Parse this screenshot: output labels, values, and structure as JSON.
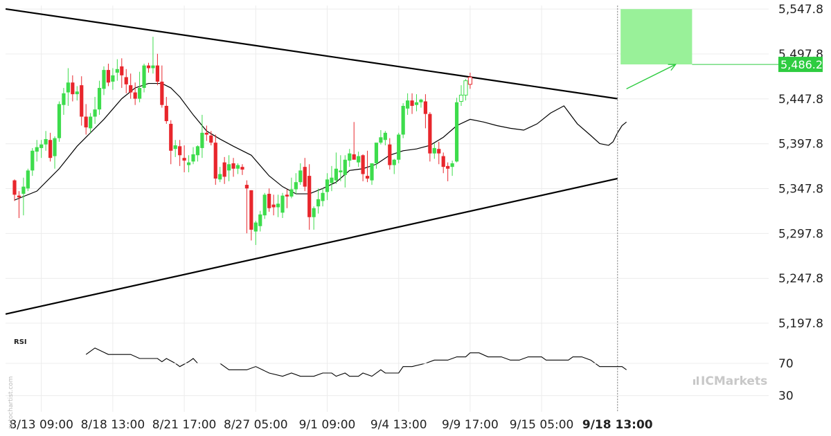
{
  "chart_data": {
    "type": "candlestick",
    "y_ticks": [
      "5,547.8",
      "5,497.8",
      "5,447.8",
      "5,397.8",
      "5,347.8",
      "5,297.8",
      "5,247.8",
      "5,197.8"
    ],
    "y_tick_values": [
      5547.8,
      5497.8,
      5447.8,
      5397.8,
      5347.8,
      5297.8,
      5247.8,
      5197.8
    ],
    "ylim": [
      5187.8,
      5551.8
    ],
    "x_ticks": [
      "8/13 09:00",
      "8/18 13:00",
      "8/21 17:00",
      "8/27 05:00",
      "9/1 09:00",
      "9/4 13:00",
      "9/9 17:00",
      "9/15 05:00",
      "9/18 13:00"
    ],
    "x_tick_index": [
      6,
      22,
      38,
      54,
      70,
      86,
      102,
      118,
      135
    ],
    "highlighted_x_tick": "9/18 13:00",
    "current_price_label": "5,486.2",
    "current_price": 5486.2,
    "colors": {
      "up": "#3ddc4c",
      "down": "#e8262c",
      "target": "#99f199",
      "accent": "#2ecc40",
      "ma": "#000000"
    },
    "candles": [
      [
        5357,
        5358,
        5334,
        5341
      ],
      [
        5340,
        5345,
        5315,
        5338
      ],
      [
        5342,
        5360,
        5318,
        5350
      ],
      [
        5348,
        5370,
        5345,
        5368
      ],
      [
        5368,
        5393,
        5362,
        5390
      ],
      [
        5389,
        5402,
        5378,
        5394
      ],
      [
        5393,
        5402,
        5382,
        5397
      ],
      [
        5397,
        5412,
        5390,
        5403
      ],
      [
        5402,
        5410,
        5378,
        5382
      ],
      [
        5384,
        5406,
        5370,
        5404
      ],
      [
        5404,
        5445,
        5400,
        5442
      ],
      [
        5441,
        5460,
        5430,
        5454
      ],
      [
        5455,
        5482,
        5440,
        5466
      ],
      [
        5466,
        5474,
        5445,
        5453
      ],
      [
        5453,
        5462,
        5446,
        5456
      ],
      [
        5463,
        5473,
        5418,
        5428
      ],
      [
        5428,
        5442,
        5408,
        5416
      ],
      [
        5415,
        5432,
        5410,
        5428
      ],
      [
        5428,
        5450,
        5420,
        5436
      ],
      [
        5436,
        5468,
        5430,
        5460
      ],
      [
        5459,
        5484,
        5452,
        5480
      ],
      [
        5480,
        5487,
        5462,
        5466
      ],
      [
        5467,
        5482,
        5458,
        5474
      ],
      [
        5477,
        5492,
        5468,
        5481
      ],
      [
        5484,
        5493,
        5460,
        5474
      ],
      [
        5472,
        5481,
        5454,
        5464
      ],
      [
        5463,
        5476,
        5448,
        5455
      ],
      [
        5455,
        5466,
        5441,
        5448
      ],
      [
        5448,
        5478,
        5444,
        5460
      ],
      [
        5460,
        5487,
        5455,
        5485
      ],
      [
        5485,
        5488,
        5477,
        5482
      ],
      [
        5482,
        5517,
        5476,
        5485
      ],
      [
        5485,
        5498,
        5463,
        5467
      ],
      [
        5467,
        5485,
        5438,
        5441
      ],
      [
        5440,
        5450,
        5420,
        5423
      ],
      [
        5420,
        5424,
        5375,
        5390
      ],
      [
        5392,
        5402,
        5383,
        5396
      ],
      [
        5395,
        5402,
        5373,
        5385
      ],
      [
        5382,
        5396,
        5366,
        5379
      ],
      [
        5374,
        5385,
        5366,
        5377
      ],
      [
        5378,
        5394,
        5375,
        5386
      ],
      [
        5385,
        5396,
        5378,
        5395
      ],
      [
        5393,
        5430,
        5382,
        5410
      ],
      [
        5410,
        5418,
        5401,
        5408
      ],
      [
        5407,
        5412,
        5396,
        5399
      ],
      [
        5399,
        5408,
        5352,
        5359
      ],
      [
        5358,
        5372,
        5355,
        5364
      ],
      [
        5377,
        5383,
        5353,
        5361
      ],
      [
        5368,
        5385,
        5356,
        5375
      ],
      [
        5376,
        5382,
        5361,
        5370
      ],
      [
        5370,
        5376,
        5364,
        5374
      ],
      [
        5372,
        5375,
        5363,
        5369
      ],
      [
        5352,
        5357,
        5298,
        5348
      ],
      [
        5346,
        5346,
        5290,
        5302
      ],
      [
        5300,
        5312,
        5285,
        5310
      ],
      [
        5306,
        5323,
        5300,
        5319
      ],
      [
        5318,
        5343,
        5314,
        5341
      ],
      [
        5342,
        5348,
        5322,
        5326
      ],
      [
        5330,
        5341,
        5318,
        5327
      ],
      [
        5327,
        5341,
        5316,
        5331
      ],
      [
        5321,
        5343,
        5315,
        5340
      ],
      [
        5341,
        5347,
        5326,
        5339
      ],
      [
        5339,
        5360,
        5337,
        5347
      ],
      [
        5347,
        5365,
        5342,
        5355
      ],
      [
        5355,
        5376,
        5352,
        5368
      ],
      [
        5372,
        5382,
        5345,
        5350
      ],
      [
        5362,
        5375,
        5302,
        5316
      ],
      [
        5316,
        5328,
        5302,
        5326
      ],
      [
        5328,
        5348,
        5320,
        5336
      ],
      [
        5334,
        5348,
        5328,
        5343
      ],
      [
        5344,
        5365,
        5335,
        5358
      ],
      [
        5354,
        5373,
        5345,
        5360
      ],
      [
        5357,
        5388,
        5353,
        5370
      ],
      [
        5366,
        5385,
        5356,
        5368
      ],
      [
        5363,
        5385,
        5349,
        5380
      ],
      [
        5379,
        5392,
        5372,
        5387
      ],
      [
        5386,
        5422,
        5382,
        5380
      ],
      [
        5377,
        5389,
        5372,
        5384
      ],
      [
        5385,
        5386,
        5356,
        5364
      ],
      [
        5362,
        5390,
        5355,
        5359
      ],
      [
        5357,
        5375,
        5352,
        5376
      ],
      [
        5376,
        5398,
        5370,
        5399
      ],
      [
        5399,
        5413,
        5397,
        5405
      ],
      [
        5402,
        5412,
        5396,
        5410
      ],
      [
        5397,
        5404,
        5369,
        5374
      ],
      [
        5374,
        5381,
        5364,
        5380
      ],
      [
        5380,
        5410,
        5376,
        5408
      ],
      [
        5408,
        5443,
        5404,
        5440
      ],
      [
        5437,
        5454,
        5430,
        5446
      ],
      [
        5446,
        5454,
        5431,
        5440
      ],
      [
        5441,
        5453,
        5434,
        5444
      ],
      [
        5444,
        5448,
        5438,
        5447
      ],
      [
        5445,
        5453,
        5415,
        5431
      ],
      [
        5431,
        5433,
        5378,
        5387
      ],
      [
        5387,
        5398,
        5381,
        5393
      ],
      [
        5392,
        5400,
        5375,
        5387
      ],
      [
        5384,
        5388,
        5365,
        5372
      ],
      [
        5373,
        5377,
        5356,
        5370
      ],
      [
        5372,
        5379,
        5362,
        5376
      ],
      [
        5378,
        5449,
        5377,
        5444
      ],
      [
        5445,
        5463,
        5440,
        5452
      ],
      [
        5452,
        5470,
        5446,
        5468
      ],
      [
        5472,
        5477,
        5459,
        5464
      ]
    ],
    "ma": [
      [
        0,
        5335
      ],
      [
        5,
        5345
      ],
      [
        10,
        5370
      ],
      [
        14,
        5395
      ],
      [
        17,
        5410
      ],
      [
        20,
        5425
      ],
      [
        24,
        5448
      ],
      [
        27,
        5460
      ],
      [
        30,
        5465
      ],
      [
        33,
        5465
      ],
      [
        35,
        5460
      ],
      [
        37,
        5450
      ],
      [
        40,
        5430
      ],
      [
        43,
        5412
      ],
      [
        46,
        5403
      ],
      [
        49,
        5395
      ],
      [
        53,
        5385
      ],
      [
        57,
        5362
      ],
      [
        60,
        5350
      ],
      [
        63,
        5342
      ],
      [
        66,
        5342
      ],
      [
        69,
        5348
      ],
      [
        72,
        5355
      ],
      [
        75,
        5368
      ],
      [
        78,
        5370
      ],
      [
        81,
        5375
      ],
      [
        84,
        5385
      ],
      [
        87,
        5390
      ],
      [
        90,
        5392
      ],
      [
        93,
        5396
      ],
      [
        96,
        5405
      ],
      [
        99,
        5418
      ],
      [
        102,
        5425
      ],
      [
        105,
        5422
      ],
      [
        108,
        5418
      ],
      [
        111,
        5415
      ],
      [
        114,
        5413
      ],
      [
        117,
        5420
      ],
      [
        120,
        5432
      ],
      [
        123,
        5440
      ],
      [
        126,
        5420
      ],
      [
        129,
        5407
      ],
      [
        131,
        5398
      ],
      [
        133,
        5396
      ],
      [
        134,
        5400
      ],
      [
        135,
        5410
      ],
      [
        136,
        5418
      ],
      [
        137,
        5422
      ]
    ],
    "trendlines": [
      {
        "name": "upper",
        "from": [
          -2,
          5548
        ],
        "to": [
          135,
          5448
        ]
      },
      {
        "name": "lower",
        "from": [
          -2,
          5208
        ],
        "to": [
          135,
          5359
        ]
      }
    ],
    "target_zone": {
      "x_from": 136,
      "x_to": 152,
      "y_from": 5486.2,
      "y_to": 5547.8
    },
    "projection_arrow": {
      "from": [
        137,
        5459
      ],
      "to": [
        148,
        5486.2
      ]
    },
    "rsi": {
      "label": "RSI",
      "y_ticks": [
        "70",
        "30"
      ],
      "y_tick_values": [
        70,
        30
      ],
      "ylim": [
        10,
        100
      ],
      "values": [
        [
          16,
          81
        ],
        [
          18,
          89
        ],
        [
          21,
          81
        ],
        [
          26,
          81
        ],
        [
          28,
          76
        ],
        [
          32,
          76
        ],
        [
          33,
          72
        ],
        [
          34,
          76
        ],
        [
          36,
          70
        ],
        [
          37,
          66
        ],
        [
          39,
          72
        ],
        [
          40,
          76
        ],
        [
          41,
          70
        ],
        [
          46,
          70
        ],
        [
          48,
          62
        ],
        [
          52,
          62
        ],
        [
          54,
          66
        ],
        [
          57,
          58
        ],
        [
          60,
          54
        ],
        [
          62,
          58
        ],
        [
          64,
          54
        ],
        [
          67,
          54
        ],
        [
          69,
          58
        ],
        [
          71,
          58
        ],
        [
          72,
          54
        ],
        [
          74,
          58
        ],
        [
          75,
          54
        ],
        [
          77,
          54
        ],
        [
          78,
          58
        ],
        [
          80,
          54
        ],
        [
          82,
          62
        ],
        [
          83,
          58
        ],
        [
          86,
          58
        ],
        [
          87,
          66
        ],
        [
          89,
          66
        ],
        [
          92,
          70
        ],
        [
          94,
          74
        ],
        [
          97,
          74
        ],
        [
          99,
          78
        ],
        [
          101,
          78
        ],
        [
          102,
          83
        ],
        [
          104,
          83
        ],
        [
          106,
          78
        ],
        [
          109,
          78
        ],
        [
          111,
          74
        ],
        [
          113,
          74
        ],
        [
          115,
          78
        ],
        [
          118,
          78
        ],
        [
          119,
          74
        ],
        [
          124,
          74
        ],
        [
          125,
          78
        ],
        [
          127,
          78
        ],
        [
          129,
          74
        ],
        [
          131,
          66
        ],
        [
          133,
          66
        ],
        [
          136,
          66
        ],
        [
          137,
          62
        ]
      ]
    }
  },
  "watermark_text": "autochartist.com",
  "logo": {
    "prefix": "IC",
    "suffix": "Markets"
  }
}
